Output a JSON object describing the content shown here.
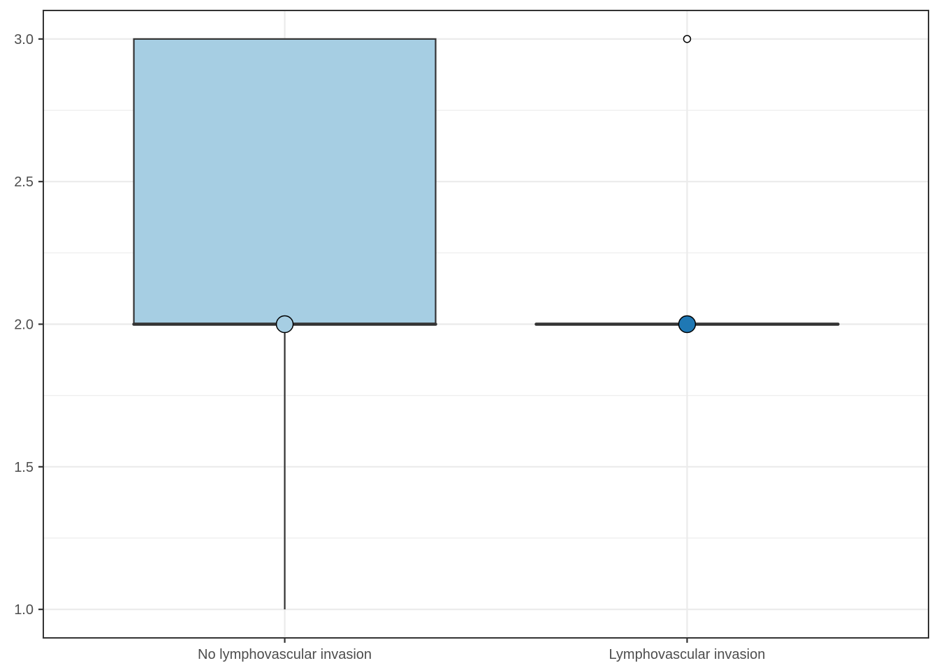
{
  "chart_data": {
    "type": "box",
    "title": "",
    "xlabel": "",
    "ylabel": "",
    "ylim": [
      0.9,
      3.1
    ],
    "y_ticks": [
      1.0,
      1.5,
      2.0,
      2.5,
      3.0
    ],
    "y_tick_labels": [
      "1.0",
      "1.5",
      "2.0",
      "2.5",
      "3.0"
    ],
    "categories": [
      "No lymphovascular invasion",
      "Lymphovascular invasion"
    ],
    "grid": true,
    "legend": "none",
    "boxes": [
      {
        "category": "No lymphovascular invasion",
        "whisker_low": 1.0,
        "q1": 2.0,
        "median": 2.0,
        "q3": 3.0,
        "whisker_high": 3.0,
        "outliers": [],
        "mean": 2.0,
        "fill": "#a6cee3"
      },
      {
        "category": "Lymphovascular invasion",
        "whisker_low": 2.0,
        "q1": 2.0,
        "median": 2.0,
        "q3": 2.0,
        "whisker_high": 2.0,
        "outliers": [
          3.0
        ],
        "mean": 2.0,
        "fill": "#1f78b4"
      }
    ]
  }
}
